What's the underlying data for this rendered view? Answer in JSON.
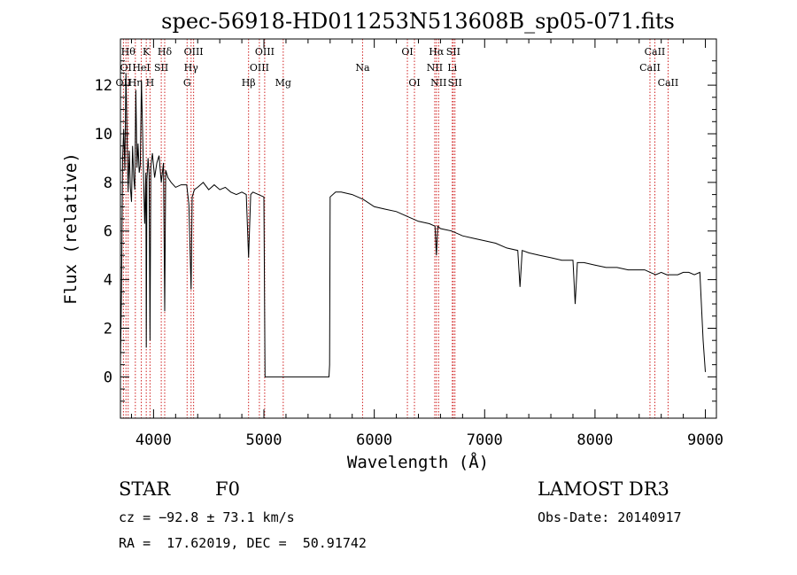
{
  "chart_data": {
    "type": "line",
    "title": "spec-56918-HD011253N513608B_sp05-071.fits",
    "xlabel": "Wavelength (Å)",
    "ylabel": "Flux (relative)",
    "xlim": [
      3700,
      9100
    ],
    "ylim": [
      -1.7,
      13.9
    ],
    "xticks": [
      4000,
      5000,
      6000,
      7000,
      8000,
      9000
    ],
    "yticks": [
      0,
      2,
      4,
      6,
      8,
      10,
      12
    ],
    "grid": false,
    "series": [
      {
        "name": "flux",
        "x": [
          3700,
          3710,
          3720,
          3730,
          3740,
          3750,
          3760,
          3770,
          3780,
          3790,
          3800,
          3810,
          3820,
          3830,
          3840,
          3850,
          3860,
          3870,
          3880,
          3890,
          3900,
          3910,
          3920,
          3930,
          3934,
          3940,
          3950,
          3960,
          3968,
          3975,
          3990,
          4010,
          4030,
          4050,
          4070,
          4090,
          4101,
          4110,
          4130,
          4160,
          4200,
          4250,
          4300,
          4320,
          4340,
          4350,
          4370,
          4400,
          4450,
          4500,
          4550,
          4600,
          4650,
          4700,
          4750,
          4800,
          4840,
          4861,
          4880,
          4900,
          4950,
          5000,
          5010,
          5015,
          5590,
          5595,
          5600,
          5650,
          5700,
          5800,
          5900,
          6000,
          6100,
          6200,
          6300,
          6400,
          6500,
          6550,
          6563,
          6575,
          6600,
          6700,
          6800,
          6900,
          7000,
          7100,
          7200,
          7300,
          7320,
          7340,
          7400,
          7500,
          7600,
          7700,
          7800,
          7820,
          7840,
          7900,
          8000,
          8100,
          8200,
          8300,
          8400,
          8450,
          8500,
          8550,
          8600,
          8650,
          8700,
          8750,
          8800,
          8850,
          8900,
          8950,
          8980,
          9000
        ],
        "values": [
          0.5,
          3.5,
          9.0,
          10.2,
          8.5,
          12.5,
          9.8,
          7.6,
          9.3,
          7.8,
          7.2,
          9.5,
          8.2,
          7.7,
          11.8,
          8.6,
          9.6,
          8.4,
          8.7,
          12.2,
          10.3,
          8.1,
          6.3,
          8.4,
          1.2,
          8.1,
          9.0,
          8.3,
          1.5,
          8.6,
          9.2,
          8.2,
          8.8,
          9.1,
          8.0,
          8.8,
          2.7,
          8.5,
          8.2,
          8.0,
          7.8,
          7.9,
          7.9,
          7.1,
          3.6,
          7.4,
          7.7,
          7.8,
          8.0,
          7.7,
          7.9,
          7.7,
          7.8,
          7.6,
          7.5,
          7.6,
          7.5,
          4.9,
          7.5,
          7.6,
          7.5,
          7.4,
          0.0,
          0.0,
          0.0,
          0.5,
          7.4,
          7.6,
          7.6,
          7.5,
          7.3,
          7.0,
          6.9,
          6.8,
          6.6,
          6.4,
          6.3,
          6.2,
          5.0,
          6.2,
          6.1,
          6.0,
          5.8,
          5.7,
          5.6,
          5.5,
          5.3,
          5.2,
          3.7,
          5.2,
          5.1,
          5.0,
          4.9,
          4.8,
          4.8,
          3.0,
          4.7,
          4.7,
          4.6,
          4.5,
          4.5,
          4.4,
          4.4,
          4.4,
          4.3,
          4.2,
          4.3,
          4.2,
          4.2,
          4.2,
          4.3,
          4.3,
          4.2,
          4.3,
          1.5,
          0.2
        ]
      }
    ],
    "lines": [
      {
        "wl": 3727,
        "label": "OII",
        "row": 3
      },
      {
        "wl": 3750,
        "label": "OI",
        "row": 2
      },
      {
        "wl": 3770,
        "label": "Hθ",
        "row": 1
      },
      {
        "wl": 3835,
        "label": "Hη",
        "row": 3
      },
      {
        "wl": 3889,
        "label": "HeI",
        "row": 2
      },
      {
        "wl": 3934,
        "label": "K",
        "row": 1
      },
      {
        "wl": 3968,
        "label": "H",
        "row": 3
      },
      {
        "wl": 4070,
        "label": "SII",
        "row": 2
      },
      {
        "wl": 4101,
        "label": "Hδ",
        "row": 1
      },
      {
        "wl": 4304,
        "label": "G",
        "row": 3
      },
      {
        "wl": 4340,
        "label": "Hγ",
        "row": 2
      },
      {
        "wl": 4363,
        "label": "OIII",
        "row": 1
      },
      {
        "wl": 4861,
        "label": "Hβ",
        "row": 3
      },
      {
        "wl": 4959,
        "label": "OIII",
        "row": 2
      },
      {
        "wl": 5007,
        "label": "OIII",
        "row": 1
      },
      {
        "wl": 5175,
        "label": "Mg",
        "row": 3
      },
      {
        "wl": 5894,
        "label": "Na",
        "row": 2
      },
      {
        "wl": 6300,
        "label": "OI",
        "row": 1
      },
      {
        "wl": 6364,
        "label": "OI",
        "row": 3
      },
      {
        "wl": 6548,
        "label": "NII",
        "row": 2
      },
      {
        "wl": 6563,
        "label": "Hα",
        "row": 1
      },
      {
        "wl": 6583,
        "label": "NII",
        "row": 3
      },
      {
        "wl": 6707,
        "label": "Li",
        "row": 2
      },
      {
        "wl": 6716,
        "label": "SII",
        "row": 1
      },
      {
        "wl": 6731,
        "label": "SII",
        "row": 3
      },
      {
        "wl": 8498,
        "label": "CaII",
        "row": 2
      },
      {
        "wl": 8542,
        "label": "CaII",
        "row": 1
      },
      {
        "wl": 8662,
        "label": "CaII",
        "row": 3
      }
    ]
  },
  "info": {
    "object_class": "STAR",
    "subclass": "F0",
    "survey": "LAMOST DR3",
    "cz": "cz = −92.8 ± 73.1 km/s",
    "obs_date": "Obs-Date: 20140917",
    "coords": "RA =  17.62019, DEC =  50.91742"
  }
}
